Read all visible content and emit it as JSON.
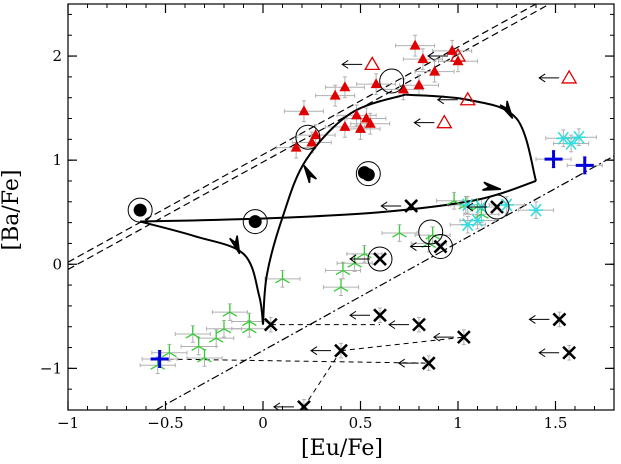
{
  "chart_data": {
    "type": "scatter",
    "title": "",
    "xlabel": "[Eu/Fe]",
    "ylabel": "[Ba/Fe]",
    "xlim": [
      -1,
      1.8
    ],
    "ylim": [
      -1.4,
      2.5
    ],
    "xticks": [
      -1,
      -0.5,
      0,
      0.5,
      1,
      1.5
    ],
    "xtick_labels": [
      "−1",
      "−0.5",
      "0",
      "0.5",
      "1",
      "1.5"
    ],
    "yticks": [
      -1,
      0,
      1,
      2
    ],
    "ytick_labels": [
      "−1",
      "0",
      "1",
      "2"
    ],
    "grid": false,
    "legend": "none",
    "colors": {
      "red": "#e00000",
      "green": "#33cc33",
      "cyan": "#33dddd",
      "blue": "#0000dd",
      "black": "#000000",
      "errorbar": "#b0b0b0"
    },
    "series": [
      {
        "marker": "filled-triangle",
        "color": "#e00000",
        "points": [
          {
            "x": 0.78,
            "y": 2.1,
            "xerr": 0.1,
            "yerr": 0.1
          },
          {
            "x": 0.82,
            "y": 1.97,
            "xerr": 0.1,
            "yerr": 0.1
          },
          {
            "x": 0.97,
            "y": 2.05,
            "xerr": 0.1,
            "yerr": 0.1
          },
          {
            "x": 1.0,
            "y": 1.95,
            "xerr": 0.1,
            "yerr": 0.1
          },
          {
            "x": 0.58,
            "y": 1.73,
            "xerr": 0.1,
            "yerr": 0.1
          },
          {
            "x": 0.72,
            "y": 1.68,
            "xerr": 0.1,
            "yerr": 0.1
          },
          {
            "x": 0.8,
            "y": 1.72,
            "xerr": 0.1,
            "yerr": 0.1
          },
          {
            "x": 0.88,
            "y": 1.85,
            "xerr": 0.1,
            "yerr": 0.1
          },
          {
            "x": 0.42,
            "y": 1.7,
            "xerr": 0.1,
            "yerr": 0.1
          },
          {
            "x": 0.37,
            "y": 1.62,
            "xerr": 0.1,
            "yerr": 0.1
          },
          {
            "x": 0.21,
            "y": 1.47,
            "xerr": 0.1,
            "yerr": 0.1
          },
          {
            "x": 0.48,
            "y": 1.43,
            "xerr": 0.1,
            "yerr": 0.1
          },
          {
            "x": 0.53,
            "y": 1.4,
            "xerr": 0.1,
            "yerr": 0.1
          },
          {
            "x": 0.42,
            "y": 1.32,
            "xerr": 0.1,
            "yerr": 0.1
          },
          {
            "x": 0.5,
            "y": 1.3,
            "xerr": 0.1,
            "yerr": 0.1
          },
          {
            "x": 0.55,
            "y": 1.35,
            "xerr": 0.1,
            "yerr": 0.1
          },
          {
            "x": 0.25,
            "y": 1.17,
            "xerr": 0.1,
            "yerr": 0.1
          },
          {
            "x": 0.27,
            "y": 1.24,
            "xerr": 0.1,
            "yerr": 0.1
          },
          {
            "x": 0.17,
            "y": 1.12,
            "xerr": 0.1,
            "yerr": 0.1
          }
        ]
      },
      {
        "marker": "open-triangle-upper-limit",
        "color": "#e00000",
        "points": [
          {
            "x": 1.0,
            "y": 2.0
          },
          {
            "x": 0.56,
            "y": 1.92
          },
          {
            "x": 1.57,
            "y": 1.79
          },
          {
            "x": 1.05,
            "y": 1.58
          },
          {
            "x": 0.93,
            "y": 1.36
          }
        ]
      },
      {
        "marker": "filled-circle",
        "color": "#000000",
        "points": [
          {
            "x": -0.63,
            "y": 0.52
          },
          {
            "x": -0.04,
            "y": 0.41
          },
          {
            "x": 0.52,
            "y": 0.88
          },
          {
            "x": 0.54,
            "y": 0.86
          }
        ]
      },
      {
        "marker": "cross-x",
        "color": "#000000",
        "points": [
          {
            "x": 0.76,
            "y": 0.56
          },
          {
            "x": 1.2,
            "y": 0.55
          },
          {
            "x": 0.6,
            "y": 0.05
          },
          {
            "x": 0.91,
            "y": 0.17
          },
          {
            "x": 0.04,
            "y": -0.58
          },
          {
            "x": 0.6,
            "y": -0.49
          },
          {
            "x": 0.8,
            "y": -0.58
          },
          {
            "x": 1.03,
            "y": -0.7
          },
          {
            "x": 0.4,
            "y": -0.83
          },
          {
            "x": 0.85,
            "y": -0.95
          },
          {
            "x": 1.52,
            "y": -0.53
          },
          {
            "x": 1.57,
            "y": -0.85
          },
          {
            "x": 0.21,
            "y": -1.37
          }
        ]
      },
      {
        "marker": "tri-star",
        "color": "#33cc33",
        "points": [
          {
            "x": 0.98,
            "y": 0.61
          },
          {
            "x": 1.04,
            "y": 0.57
          },
          {
            "x": 1.1,
            "y": 0.55
          },
          {
            "x": 1.12,
            "y": 0.48
          },
          {
            "x": 0.7,
            "y": 0.3
          },
          {
            "x": 0.87,
            "y": 0.28
          },
          {
            "x": 0.85,
            "y": 0.2
          },
          {
            "x": 0.52,
            "y": 0.1
          },
          {
            "x": 0.47,
            "y": 0.01
          },
          {
            "x": 0.41,
            "y": -0.06
          },
          {
            "x": 0.1,
            "y": -0.14
          },
          {
            "x": 0.4,
            "y": -0.22
          },
          {
            "x": -0.17,
            "y": -0.46
          },
          {
            "x": -0.07,
            "y": -0.55
          },
          {
            "x": -0.07,
            "y": -0.62
          },
          {
            "x": -0.2,
            "y": -0.62
          },
          {
            "x": -0.24,
            "y": -0.71
          },
          {
            "x": -0.36,
            "y": -0.67
          },
          {
            "x": -0.33,
            "y": -0.79
          },
          {
            "x": -0.48,
            "y": -0.85
          },
          {
            "x": -0.3,
            "y": -0.9
          },
          {
            "x": -0.54,
            "y": -0.97
          }
        ]
      },
      {
        "marker": "asterisk",
        "color": "#33dddd",
        "points": [
          {
            "x": 1.54,
            "y": 1.21
          },
          {
            "x": 1.62,
            "y": 1.22
          },
          {
            "x": 1.58,
            "y": 1.16
          },
          {
            "x": 1.05,
            "y": 0.57
          },
          {
            "x": 1.12,
            "y": 0.55
          },
          {
            "x": 1.1,
            "y": 0.42
          },
          {
            "x": 1.25,
            "y": 0.57
          },
          {
            "x": 1.4,
            "y": 0.52
          },
          {
            "x": 1.05,
            "y": 0.38
          }
        ]
      },
      {
        "marker": "plus",
        "color": "#0000dd",
        "points": [
          {
            "x": 1.49,
            "y": 1.01
          },
          {
            "x": 1.65,
            "y": 0.95
          },
          {
            "x": -0.53,
            "y": -0.91
          }
        ]
      }
    ],
    "open_circles": [
      {
        "x": -0.63,
        "y": 0.52
      },
      {
        "x": -0.04,
        "y": 0.41
      },
      {
        "x": 0.54,
        "y": 0.87
      },
      {
        "x": 0.66,
        "y": 1.76
      },
      {
        "x": 0.23,
        "y": 1.22
      },
      {
        "x": 0.86,
        "y": 0.31
      },
      {
        "x": 0.6,
        "y": 0.05
      },
      {
        "x": 0.91,
        "y": 0.17
      },
      {
        "x": 1.2,
        "y": 0.55
      }
    ],
    "upper_limit_arrows": [
      {
        "x": 0.76,
        "y": 0.56
      },
      {
        "x": 1.2,
        "y": 0.55
      },
      {
        "x": 0.6,
        "y": 0.05
      },
      {
        "x": 0.91,
        "y": 0.17
      },
      {
        "x": 0.6,
        "y": -0.49
      },
      {
        "x": 0.8,
        "y": -0.58
      },
      {
        "x": 1.03,
        "y": -0.7
      },
      {
        "x": 0.4,
        "y": -0.83
      },
      {
        "x": 0.85,
        "y": -0.95
      },
      {
        "x": 1.52,
        "y": -0.53
      },
      {
        "x": 1.57,
        "y": -0.85
      },
      {
        "x": 0.21,
        "y": -1.37
      },
      {
        "x": 1.0,
        "y": 2.0
      },
      {
        "x": 0.56,
        "y": 1.92
      },
      {
        "x": 1.57,
        "y": 1.79
      },
      {
        "x": 1.05,
        "y": 1.58
      },
      {
        "x": 0.93,
        "y": 1.36
      }
    ],
    "connectors": [
      {
        "from": {
          "x": 0.04,
          "y": -0.58
        },
        "to": {
          "x": 0.6,
          "y": -0.58
        }
      },
      {
        "from": {
          "x": 0.4,
          "y": -0.83
        },
        "to": {
          "x": 1.03,
          "y": -0.7
        }
      },
      {
        "from": {
          "x": -0.53,
          "y": -0.91
        },
        "to": {
          "x": 0.85,
          "y": -0.95
        }
      },
      {
        "from": {
          "x": 0.4,
          "y": -0.83
        },
        "to": {
          "x": 0.21,
          "y": -1.37
        }
      }
    ],
    "reference_lines": [
      {
        "style": "dashed",
        "from": {
          "x": -1,
          "y": 0.02
        },
        "to": {
          "x": 1.4,
          "y": 2.5
        }
      },
      {
        "style": "dashed",
        "from": {
          "x": -1,
          "y": -0.05
        },
        "to": {
          "x": 1.47,
          "y": 2.5
        }
      },
      {
        "style": "dashdot",
        "from": {
          "x": -0.55,
          "y": -1.4
        },
        "to": {
          "x": 1.8,
          "y": 1.04
        }
      }
    ],
    "trajectories": [
      [
        {
          "x": -0.63,
          "y": 0.41
        },
        {
          "x": -0.35,
          "y": 0.27
        },
        {
          "x": -0.1,
          "y": 0.1
        },
        {
          "x": -0.02,
          "y": -0.3
        },
        {
          "x": 0.0,
          "y": -0.58
        }
      ],
      [
        {
          "x": 0.0,
          "y": -0.58
        },
        {
          "x": 0.02,
          "y": -0.1
        },
        {
          "x": 0.1,
          "y": 0.45
        },
        {
          "x": 0.22,
          "y": 1.0
        },
        {
          "x": 0.45,
          "y": 1.45
        },
        {
          "x": 0.73,
          "y": 1.63
        }
      ],
      [
        {
          "x": 0.73,
          "y": 1.63
        },
        {
          "x": 1.05,
          "y": 1.58
        },
        {
          "x": 1.3,
          "y": 1.4
        },
        {
          "x": 1.4,
          "y": 0.8
        }
      ],
      [
        {
          "x": 1.4,
          "y": 0.8
        },
        {
          "x": 1.1,
          "y": 0.62
        },
        {
          "x": 0.6,
          "y": 0.5
        },
        {
          "x": 0.0,
          "y": 0.44
        },
        {
          "x": -0.63,
          "y": 0.41
        }
      ]
    ],
    "direction_arrows": [
      {
        "x": -0.12,
        "y": 0.1,
        "angle": 70
      },
      {
        "x": 0.21,
        "y": 0.95,
        "angle": 240
      },
      {
        "x": 1.28,
        "y": 1.4,
        "angle": 60
      },
      {
        "x": 1.22,
        "y": 0.72,
        "angle": 10
      }
    ]
  }
}
